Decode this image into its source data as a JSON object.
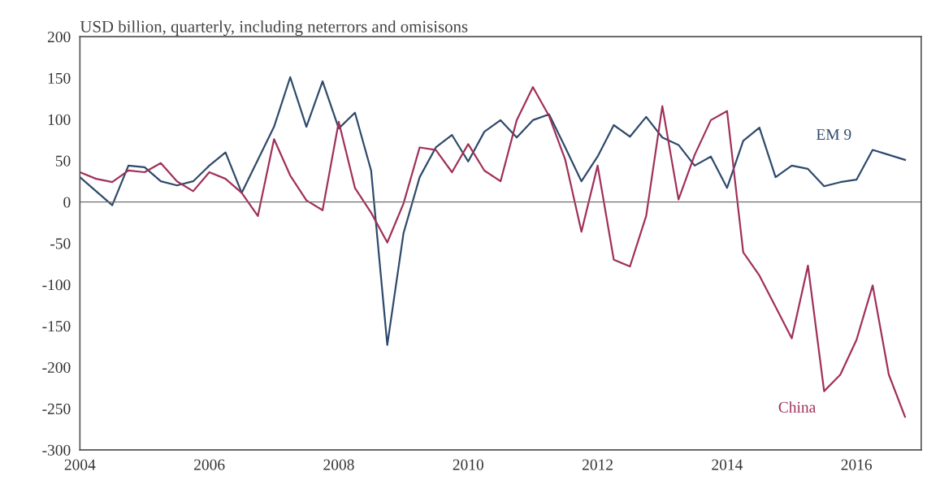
{
  "chart_data": {
    "type": "line",
    "title": "USD billion, quarterly, including neterrors and omisisons",
    "x": [
      2004.0,
      2004.25,
      2004.5,
      2004.75,
      2005.0,
      2005.25,
      2005.5,
      2005.75,
      2006.0,
      2006.25,
      2006.5,
      2006.75,
      2007.0,
      2007.25,
      2007.5,
      2007.75,
      2008.0,
      2008.25,
      2008.5,
      2008.75,
      2009.0,
      2009.25,
      2009.5,
      2009.75,
      2010.0,
      2010.25,
      2010.5,
      2010.75,
      2011.0,
      2011.25,
      2011.5,
      2011.75,
      2012.0,
      2012.25,
      2012.5,
      2012.75,
      2013.0,
      2013.25,
      2013.5,
      2013.75,
      2014.0,
      2014.25,
      2014.5,
      2014.75,
      2015.0,
      2015.25,
      2015.5,
      2015.75,
      2016.0,
      2016.25,
      2016.5,
      2016.75
    ],
    "series": [
      {
        "name": "EM 9",
        "color": "#2e4a6b",
        "values": [
          30,
          13,
          -4,
          44,
          42,
          25,
          20,
          25,
          44,
          60,
          11,
          51,
          91,
          151,
          91,
          146,
          89,
          108,
          38,
          -173,
          -38,
          30,
          66,
          81,
          49,
          85,
          99,
          78,
          99,
          106,
          66,
          25,
          55,
          93,
          79,
          103,
          78,
          69,
          44,
          55,
          17,
          74,
          90,
          30,
          44,
          40,
          19,
          24,
          27,
          63,
          57,
          51
        ]
      },
      {
        "name": "China",
        "color": "#a0305a",
        "values": [
          36,
          28,
          24,
          38,
          36,
          47,
          25,
          13,
          36,
          28,
          11,
          -17,
          76,
          32,
          2,
          -10,
          97,
          17,
          -13,
          -49,
          -2,
          66,
          63,
          36,
          70,
          38,
          25,
          99,
          139,
          104,
          51,
          -36,
          44,
          -70,
          -78,
          -17,
          116,
          3,
          57,
          99,
          110,
          -61,
          -89,
          -127,
          -165,
          -77,
          -229,
          -209,
          -167,
          -101,
          -209,
          -260
        ]
      }
    ],
    "xlim": [
      2004,
      2017
    ],
    "xticks": [
      2004,
      2006,
      2008,
      2010,
      2012,
      2014,
      2016
    ],
    "ylim": [
      -300,
      200
    ],
    "yticks": [
      -300,
      -250,
      -200,
      -150,
      -100,
      -50,
      0,
      50,
      100,
      150,
      200
    ],
    "ref_lines": [
      {
        "axis": "y",
        "value": 0,
        "color": "#707070"
      }
    ],
    "grid": false,
    "legend": false,
    "marker": "none",
    "line_style": "solid"
  }
}
